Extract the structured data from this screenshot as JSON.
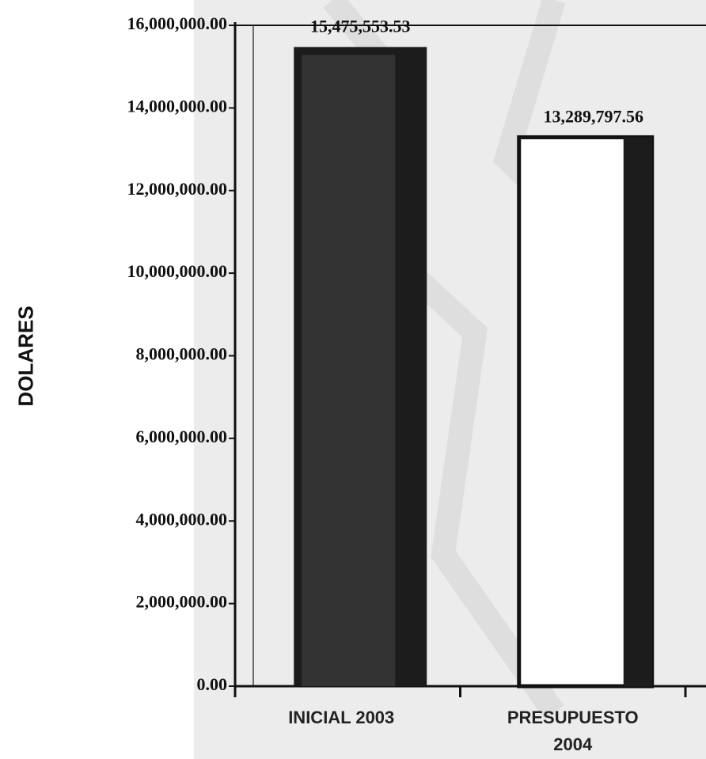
{
  "chart_data": {
    "type": "bar",
    "y_label": "DOLARES",
    "categories": [
      "INICIAL 2003",
      "PRESUPUESTO 2004"
    ],
    "values": [
      15475553.53,
      13289797.56
    ],
    "value_labels": [
      "15,475,553.53",
      "13,289,797.56"
    ],
    "colors": [
      "#1c1c1c",
      "#ffffff"
    ],
    "ylim": [
      0,
      16000000
    ],
    "yticks": [
      {
        "value": 0,
        "label": "0.00"
      },
      {
        "value": 2000000,
        "label": "2,000,000.00"
      },
      {
        "value": 4000000,
        "label": "4,000,000.00"
      },
      {
        "value": 6000000,
        "label": "6,000,000.00"
      },
      {
        "value": 8000000,
        "label": "8,000,000.00"
      },
      {
        "value": 10000000,
        "label": "10,000,000.00"
      },
      {
        "value": 12000000,
        "label": "12,000,000.00"
      },
      {
        "value": 14000000,
        "label": "14,000,000.00"
      },
      {
        "value": 16000000,
        "label": "16,000,000.00"
      }
    ],
    "grid": false
  }
}
